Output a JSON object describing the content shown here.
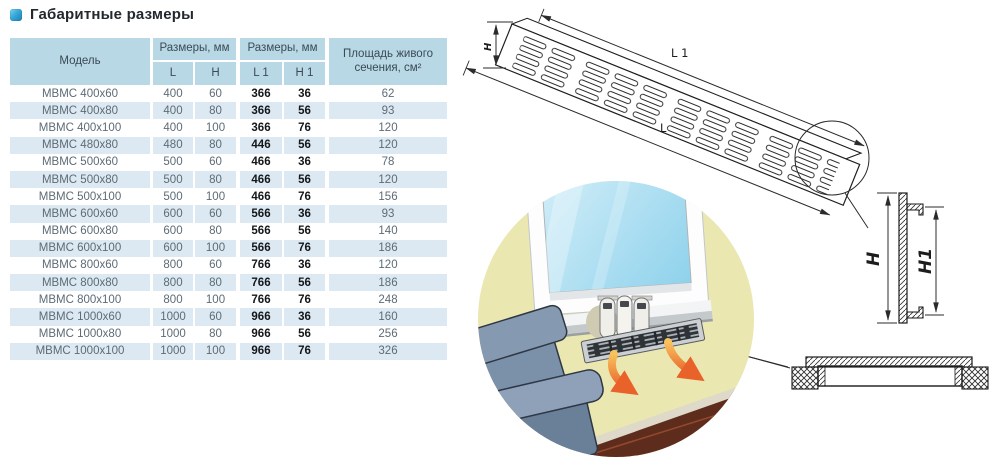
{
  "title": {
    "icon": "blue-square",
    "text": "Габаритные размеры"
  },
  "table": {
    "headers": {
      "model": "Модель",
      "dims1": "Размеры, мм",
      "dims2": "Размеры, мм",
      "area": "Площадь живого сечения, см²",
      "l": "L",
      "h": "H",
      "l1": "L 1",
      "h1": "H 1"
    },
    "rows": [
      {
        "model": "МВМС 400x60",
        "l": "400",
        "h": "60",
        "l1": "366",
        "h1": "36",
        "area": "62"
      },
      {
        "model": "МВМС 400x80",
        "l": "400",
        "h": "80",
        "l1": "366",
        "h1": "56",
        "area": "93"
      },
      {
        "model": "МВМС 400x100",
        "l": "400",
        "h": "100",
        "l1": "366",
        "h1": "76",
        "area": "120"
      },
      {
        "model": "МВМС 480x80",
        "l": "480",
        "h": "80",
        "l1": "446",
        "h1": "56",
        "area": "120"
      },
      {
        "model": "МВМС 500x60",
        "l": "500",
        "h": "60",
        "l1": "466",
        "h1": "36",
        "area": "78"
      },
      {
        "model": "МВМС 500x80",
        "l": "500",
        "h": "80",
        "l1": "466",
        "h1": "56",
        "area": "120"
      },
      {
        "model": "МВМС 500x100",
        "l": "500",
        "h": "100",
        "l1": "466",
        "h1": "76",
        "area": "156"
      },
      {
        "model": "МВМС 600x60",
        "l": "600",
        "h": "60",
        "l1": "566",
        "h1": "36",
        "area": "93"
      },
      {
        "model": "МВМС 600x80",
        "l": "600",
        "h": "80",
        "l1": "566",
        "h1": "56",
        "area": "140"
      },
      {
        "model": "МВМС 600x100",
        "l": "600",
        "h": "100",
        "l1": "566",
        "h1": "76",
        "area": "186"
      },
      {
        "model": "МВМС 800x60",
        "l": "800",
        "h": "60",
        "l1": "766",
        "h1": "36",
        "area": "120"
      },
      {
        "model": "МВМС 800x80",
        "l": "800",
        "h": "80",
        "l1": "766",
        "h1": "56",
        "area": "186"
      },
      {
        "model": "МВМС 800x100",
        "l": "800",
        "h": "100",
        "l1": "766",
        "h1": "76",
        "area": "248"
      },
      {
        "model": "МВМС 1000x60",
        "l": "1000",
        "h": "60",
        "l1": "966",
        "h1": "36",
        "area": "160"
      },
      {
        "model": "МВМС 1000x80",
        "l": "1000",
        "h": "80",
        "l1": "966",
        "h1": "56",
        "area": "256"
      },
      {
        "model": "МВМС 1000x100",
        "l": "1000",
        "h": "100",
        "l1": "966",
        "h1": "76",
        "area": "326"
      }
    ]
  },
  "diagrams": {
    "iso_grille": {
      "label_h": "H",
      "label_l1": "L 1",
      "label_l": "L"
    },
    "side_view": {
      "label_h": "H",
      "label_h1": "H1"
    }
  },
  "colors": {
    "header_bg": "#b8d8e6",
    "stripe_bg": "#dce9f2",
    "arrow_orange": "#e8622a",
    "wall": "#eae7b1",
    "couch": "#7b90a9"
  }
}
